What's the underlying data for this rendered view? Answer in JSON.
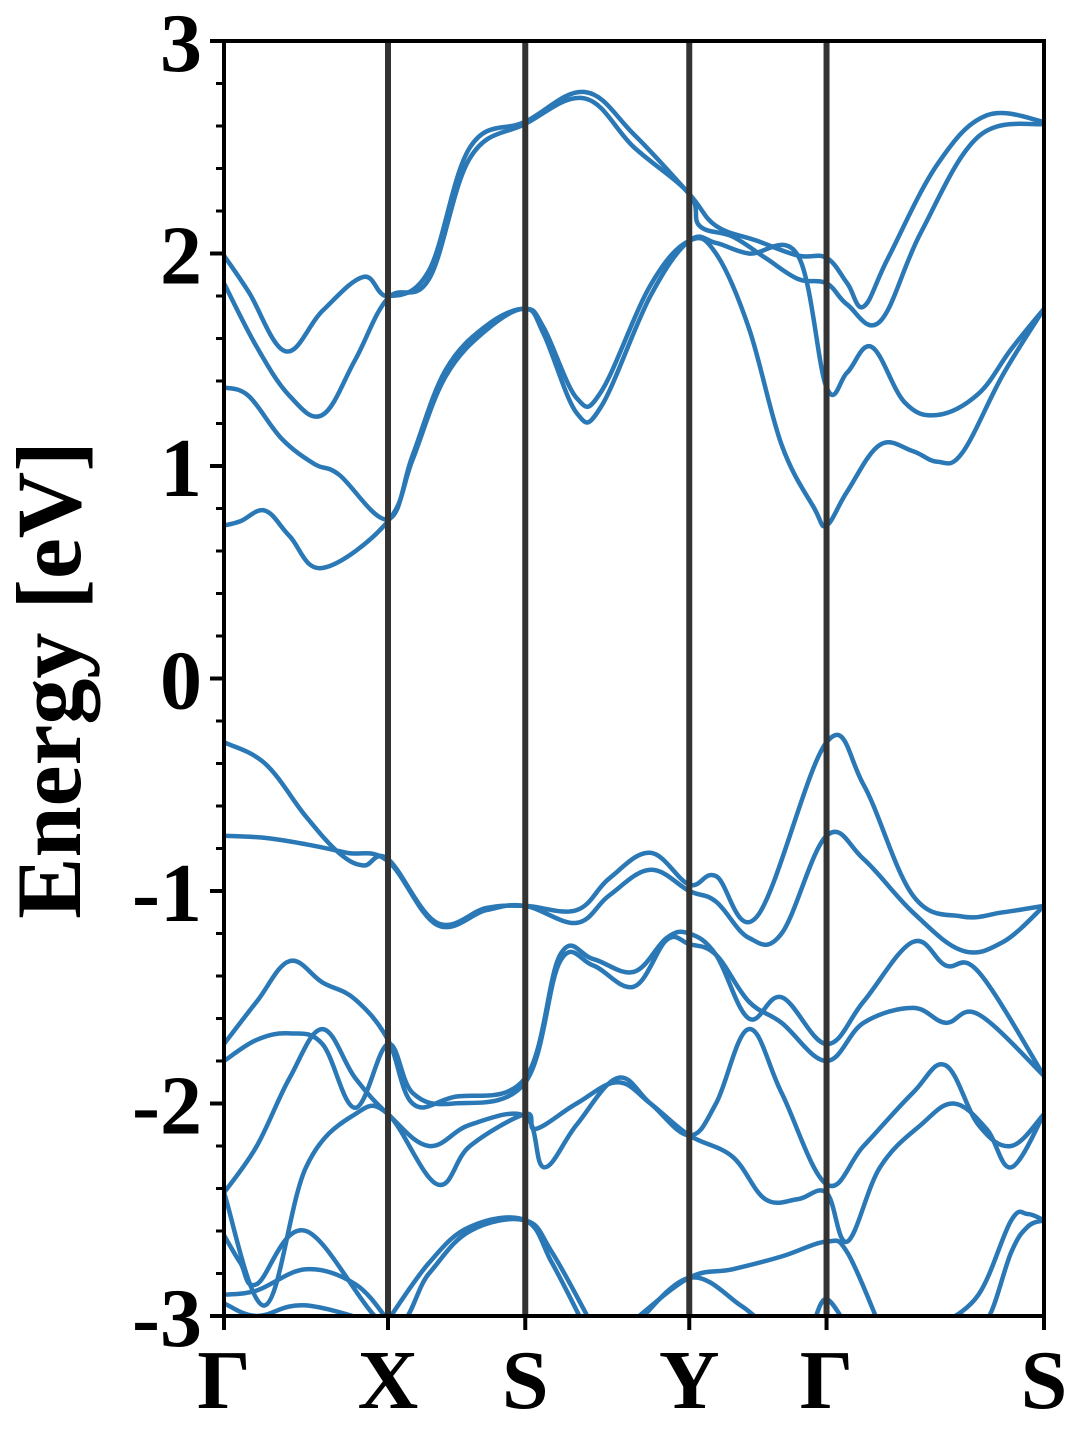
{
  "chart_data": {
    "type": "line",
    "title": "",
    "ylabel": "Energy [eV]",
    "xlabel": "",
    "ylim": [
      -3,
      3
    ],
    "xlim": [
      0,
      1
    ],
    "yticks": [
      "-3",
      "-2",
      "-1",
      "0",
      "1",
      "2",
      "3"
    ],
    "ytick_values": [
      -3,
      -2,
      -1,
      0,
      1,
      2,
      3
    ],
    "minor_ytick_step": 0.2,
    "grid": false,
    "legend": "none",
    "line_color": "#2a78b5",
    "kpath_line_color": "#333333",
    "kpoints": [
      {
        "label": "Γ",
        "x": 0.0
      },
      {
        "label": "X",
        "x": 0.2
      },
      {
        "label": "S",
        "x": 0.3674
      },
      {
        "label": "Y",
        "x": 0.5674
      },
      {
        "label": "Γ",
        "x": 0.7348
      },
      {
        "label": "S",
        "x": 1.0
      }
    ],
    "series": [
      {
        "values": [
          [
            0.0,
            1.99
          ],
          [
            0.03,
            1.82
          ],
          [
            0.075,
            1.54
          ],
          [
            0.12,
            1.73
          ],
          [
            0.17,
            1.89
          ],
          [
            0.2,
            1.8
          ],
          [
            0.25,
            1.92
          ],
          [
            0.3,
            2.5
          ],
          [
            0.3674,
            2.62
          ],
          [
            0.44,
            2.76
          ],
          [
            0.5,
            2.56
          ],
          [
            0.5674,
            2.28
          ],
          [
            0.6,
            2.13
          ],
          [
            0.65,
            2.06
          ],
          [
            0.7,
            1.99
          ],
          [
            0.7348,
            1.98
          ],
          [
            0.76,
            1.86
          ],
          [
            0.78,
            1.75
          ],
          [
            0.81,
            1.98
          ],
          [
            0.87,
            2.42
          ],
          [
            0.93,
            2.65
          ],
          [
            1.0,
            2.62
          ]
        ]
      },
      {
        "values": [
          [
            0.0,
            1.86
          ],
          [
            0.04,
            1.56
          ],
          [
            0.08,
            1.33
          ],
          [
            0.12,
            1.24
          ],
          [
            0.16,
            1.5
          ],
          [
            0.2,
            1.79
          ],
          [
            0.25,
            1.88
          ],
          [
            0.3,
            2.45
          ],
          [
            0.3674,
            2.61
          ],
          [
            0.44,
            2.73
          ],
          [
            0.5,
            2.5
          ],
          [
            0.5674,
            2.28
          ],
          [
            0.58,
            2.13
          ],
          [
            0.62,
            2.08
          ],
          [
            0.66,
            1.98
          ],
          [
            0.7,
            1.88
          ],
          [
            0.7348,
            1.86
          ],
          [
            0.76,
            1.76
          ],
          [
            0.8,
            1.68
          ],
          [
            0.85,
            2.1
          ],
          [
            0.92,
            2.55
          ],
          [
            1.0,
            2.61
          ]
        ]
      },
      {
        "values": [
          [
            0.0,
            1.37
          ],
          [
            0.03,
            1.33
          ],
          [
            0.07,
            1.13
          ],
          [
            0.11,
            1.01
          ],
          [
            0.14,
            0.96
          ],
          [
            0.2,
            0.75
          ],
          [
            0.23,
            1.05
          ],
          [
            0.27,
            1.45
          ],
          [
            0.32,
            1.66
          ],
          [
            0.3674,
            1.74
          ],
          [
            0.39,
            1.65
          ],
          [
            0.43,
            1.32
          ],
          [
            0.46,
            1.35
          ],
          [
            0.52,
            1.85
          ],
          [
            0.5674,
            2.06
          ],
          [
            0.6,
            2.0
          ],
          [
            0.64,
            1.65
          ],
          [
            0.68,
            1.1
          ],
          [
            0.72,
            0.8
          ],
          [
            0.7348,
            0.72
          ],
          [
            0.76,
            0.88
          ],
          [
            0.8,
            1.1
          ],
          [
            0.84,
            1.07
          ],
          [
            0.87,
            1.02
          ],
          [
            0.9,
            1.06
          ],
          [
            0.95,
            1.43
          ],
          [
            1.0,
            1.74
          ]
        ]
      },
      {
        "values": [
          [
            0.0,
            0.72
          ],
          [
            0.02,
            0.74
          ],
          [
            0.05,
            0.79
          ],
          [
            0.08,
            0.67
          ],
          [
            0.12,
            0.52
          ],
          [
            0.2,
            0.74
          ],
          [
            0.23,
            1.03
          ],
          [
            0.27,
            1.42
          ],
          [
            0.32,
            1.64
          ],
          [
            0.3674,
            1.74
          ],
          [
            0.39,
            1.62
          ],
          [
            0.43,
            1.25
          ],
          [
            0.46,
            1.28
          ],
          [
            0.52,
            1.8
          ],
          [
            0.5674,
            2.06
          ],
          [
            0.6,
            2.05
          ],
          [
            0.64,
            2.0
          ],
          [
            0.7,
            1.99
          ],
          [
            0.7348,
            1.37
          ],
          [
            0.76,
            1.44
          ],
          [
            0.79,
            1.56
          ],
          [
            0.83,
            1.3
          ],
          [
            0.87,
            1.24
          ],
          [
            0.92,
            1.34
          ],
          [
            0.96,
            1.55
          ],
          [
            1.0,
            1.74
          ]
        ]
      },
      {
        "values": [
          [
            0.0,
            -0.3
          ],
          [
            0.05,
            -0.4
          ],
          [
            0.1,
            -0.65
          ],
          [
            0.14,
            -0.82
          ],
          [
            0.17,
            -0.88
          ],
          [
            0.2,
            -0.85
          ],
          [
            0.26,
            -1.15
          ],
          [
            0.32,
            -1.08
          ],
          [
            0.3674,
            -1.07
          ],
          [
            0.43,
            -1.09
          ],
          [
            0.47,
            -0.94
          ],
          [
            0.52,
            -0.82
          ],
          [
            0.5674,
            -0.97
          ],
          [
            0.6,
            -0.93
          ],
          [
            0.65,
            -1.12
          ],
          [
            0.7348,
            -0.3
          ],
          [
            0.78,
            -0.5
          ],
          [
            0.84,
            -1.02
          ],
          [
            0.9,
            -1.12
          ],
          [
            0.95,
            -1.1
          ],
          [
            1.0,
            -1.07
          ]
        ]
      },
      {
        "values": [
          [
            0.0,
            -0.74
          ],
          [
            0.05,
            -0.75
          ],
          [
            0.1,
            -0.78
          ],
          [
            0.15,
            -0.82
          ],
          [
            0.2,
            -0.86
          ],
          [
            0.26,
            -1.16
          ],
          [
            0.32,
            -1.09
          ],
          [
            0.3674,
            -1.07
          ],
          [
            0.43,
            -1.15
          ],
          [
            0.47,
            -1.02
          ],
          [
            0.52,
            -0.9
          ],
          [
            0.5674,
            -1.0
          ],
          [
            0.6,
            -1.05
          ],
          [
            0.64,
            -1.22
          ],
          [
            0.68,
            -1.2
          ],
          [
            0.7348,
            -0.74
          ],
          [
            0.78,
            -0.85
          ],
          [
            0.84,
            -1.1
          ],
          [
            0.9,
            -1.28
          ],
          [
            0.95,
            -1.24
          ],
          [
            1.0,
            -1.07
          ]
        ]
      },
      {
        "values": [
          [
            0.0,
            -1.72
          ],
          [
            0.04,
            -1.52
          ],
          [
            0.08,
            -1.33
          ],
          [
            0.12,
            -1.43
          ],
          [
            0.16,
            -1.51
          ],
          [
            0.2,
            -1.7
          ],
          [
            0.23,
            -2.0
          ],
          [
            0.28,
            -1.97
          ],
          [
            0.3674,
            -1.88
          ],
          [
            0.41,
            -1.3
          ],
          [
            0.45,
            -1.32
          ],
          [
            0.5,
            -1.38
          ],
          [
            0.54,
            -1.22
          ],
          [
            0.5674,
            -1.2
          ],
          [
            0.6,
            -1.3
          ],
          [
            0.64,
            -1.6
          ],
          [
            0.68,
            -1.5
          ],
          [
            0.7348,
            -1.72
          ],
          [
            0.78,
            -1.52
          ],
          [
            0.84,
            -1.24
          ],
          [
            0.88,
            -1.35
          ],
          [
            0.92,
            -1.38
          ],
          [
            1.0,
            -1.87
          ]
        ]
      },
      {
        "values": [
          [
            0.0,
            -1.8
          ],
          [
            0.04,
            -1.7
          ],
          [
            0.08,
            -1.67
          ],
          [
            0.12,
            -1.72
          ],
          [
            0.16,
            -2.02
          ],
          [
            0.2,
            -1.72
          ],
          [
            0.23,
            -1.95
          ],
          [
            0.28,
            -2.0
          ],
          [
            0.3674,
            -1.9
          ],
          [
            0.41,
            -1.33
          ],
          [
            0.45,
            -1.35
          ],
          [
            0.5,
            -1.45
          ],
          [
            0.54,
            -1.23
          ],
          [
            0.5674,
            -1.25
          ],
          [
            0.6,
            -1.3
          ],
          [
            0.64,
            -1.52
          ],
          [
            0.68,
            -1.62
          ],
          [
            0.7348,
            -1.8
          ],
          [
            0.78,
            -1.62
          ],
          [
            0.84,
            -1.55
          ],
          [
            0.88,
            -1.62
          ],
          [
            0.92,
            -1.58
          ],
          [
            1.0,
            -1.87
          ]
        ]
      },
      {
        "values": [
          [
            0.0,
            -2.42
          ],
          [
            0.04,
            -2.2
          ],
          [
            0.08,
            -1.88
          ],
          [
            0.12,
            -1.65
          ],
          [
            0.16,
            -1.88
          ],
          [
            0.2,
            -2.05
          ],
          [
            0.25,
            -2.2
          ],
          [
            0.3,
            -2.1
          ],
          [
            0.3674,
            -2.06
          ],
          [
            0.39,
            -2.3
          ],
          [
            0.43,
            -2.1
          ],
          [
            0.48,
            -1.88
          ],
          [
            0.52,
            -2.0
          ],
          [
            0.5674,
            -2.15
          ],
          [
            0.6,
            -2.0
          ],
          [
            0.64,
            -1.65
          ],
          [
            0.68,
            -1.95
          ],
          [
            0.7348,
            -2.38
          ],
          [
            0.78,
            -2.2
          ],
          [
            0.84,
            -1.95
          ],
          [
            0.88,
            -1.82
          ],
          [
            0.92,
            -2.1
          ],
          [
            0.96,
            -2.2
          ],
          [
            1.0,
            -2.05
          ]
        ]
      },
      {
        "values": [
          [
            0.0,
            -2.42
          ],
          [
            0.05,
            -2.95
          ],
          [
            0.1,
            -2.3
          ],
          [
            0.16,
            -2.05
          ],
          [
            0.2,
            -2.05
          ],
          [
            0.26,
            -2.38
          ],
          [
            0.3,
            -2.2
          ],
          [
            0.3674,
            -2.05
          ],
          [
            0.38,
            -2.12
          ],
          [
            0.43,
            -2.0
          ],
          [
            0.48,
            -1.9
          ],
          [
            0.52,
            -2.0
          ],
          [
            0.5674,
            -2.15
          ],
          [
            0.62,
            -2.25
          ],
          [
            0.66,
            -2.45
          ],
          [
            0.7,
            -2.45
          ],
          [
            0.7348,
            -2.42
          ],
          [
            0.76,
            -2.65
          ],
          [
            0.8,
            -2.3
          ],
          [
            0.85,
            -2.1
          ],
          [
            0.89,
            -2.0
          ],
          [
            0.93,
            -2.12
          ],
          [
            0.96,
            -2.3
          ],
          [
            1.0,
            -2.05
          ]
        ]
      },
      {
        "values": [
          [
            0.0,
            -2.62
          ],
          [
            0.02,
            -2.75
          ],
          [
            0.04,
            -2.85
          ],
          [
            0.1,
            -2.6
          ],
          [
            0.2,
            -3.05
          ],
          [
            0.25,
            -2.8
          ],
          [
            0.3,
            -2.6
          ],
          [
            0.3674,
            -2.55
          ],
          [
            0.4,
            -2.7
          ],
          [
            0.45,
            -3.05
          ]
        ]
      },
      {
        "values": [
          [
            0.0,
            -2.9
          ],
          [
            0.04,
            -2.88
          ],
          [
            0.1,
            -2.78
          ],
          [
            0.16,
            -2.85
          ],
          [
            0.2,
            -3.02
          ]
        ]
      },
      {
        "values": [
          [
            0.0,
            -2.94
          ],
          [
            0.04,
            -3.0
          ],
          [
            0.1,
            -2.95
          ],
          [
            0.2,
            -3.05
          ]
        ]
      },
      {
        "values": [
          [
            0.2,
            -3.02
          ],
          [
            0.25,
            -2.75
          ],
          [
            0.3,
            -2.58
          ],
          [
            0.3674,
            -2.55
          ],
          [
            0.4,
            -2.75
          ],
          [
            0.44,
            -3.05
          ]
        ]
      },
      {
        "values": [
          [
            0.5,
            -3.02
          ],
          [
            0.5674,
            -2.82
          ],
          [
            0.62,
            -2.78
          ],
          [
            0.68,
            -2.72
          ],
          [
            0.7348,
            -2.65
          ],
          [
            0.76,
            -2.7
          ],
          [
            0.8,
            -3.05
          ]
        ]
      },
      {
        "values": [
          [
            0.5,
            -3.05
          ],
          [
            0.5674,
            -2.82
          ],
          [
            0.63,
            -2.95
          ],
          [
            0.66,
            -3.05
          ]
        ]
      },
      {
        "values": [
          [
            0.72,
            -3.02
          ],
          [
            0.7348,
            -2.92
          ],
          [
            0.76,
            -3.05
          ]
        ]
      },
      {
        "values": [
          [
            0.85,
            -3.05
          ],
          [
            0.9,
            -3.0
          ],
          [
            0.93,
            -3.02
          ],
          [
            0.96,
            -2.7
          ],
          [
            0.98,
            -2.58
          ],
          [
            1.0,
            -2.55
          ]
        ]
      },
      {
        "values": [
          [
            0.87,
            -3.05
          ],
          [
            0.92,
            -2.9
          ],
          [
            0.96,
            -2.55
          ],
          [
            0.98,
            -2.52
          ],
          [
            1.0,
            -2.55
          ]
        ]
      }
    ]
  }
}
